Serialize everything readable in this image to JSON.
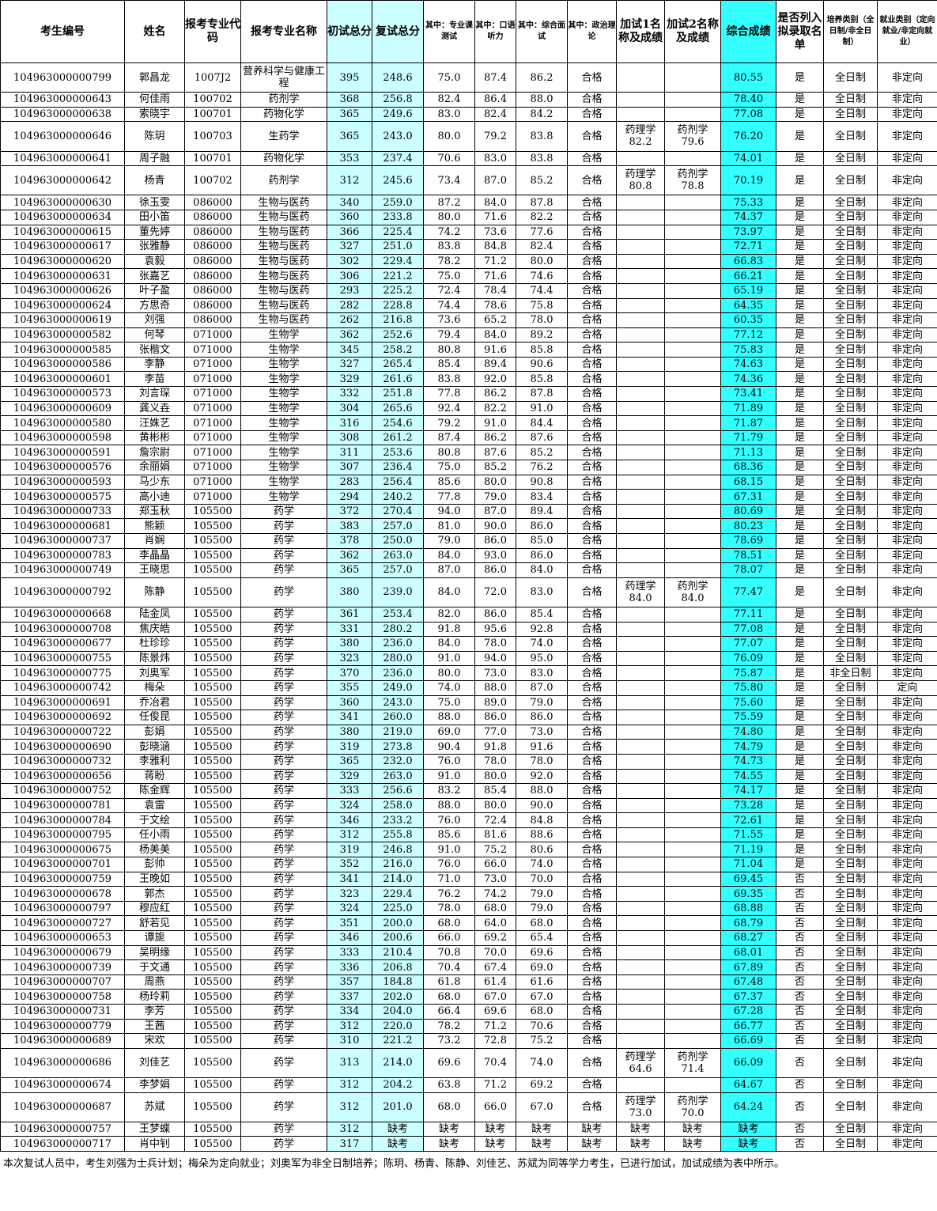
{
  "table": {
    "columns": [
      "考生编号",
      "姓名",
      "报考专业代码",
      "报考专业名称",
      "初试总分",
      "复试总分",
      "其中：专业课测试",
      "其中：口语听力",
      "其中：综合面试",
      "其中：政治理论",
      "加试1名称及成绩",
      "加试2名称及成绩",
      "综合成绩",
      "是否列入拟录取名单",
      "培养类别（全日制/非全日制）",
      "就业类别（定向就业/非定向就业）"
    ],
    "rows": [
      [
        "104963000000799",
        "郭昌龙",
        "1007J2",
        "营养科学与健康工程",
        "395",
        "248.6",
        "75.0",
        "87.4",
        "86.2",
        "合格",
        null,
        null,
        "80.55",
        "是",
        "全日制",
        "非定向"
      ],
      [
        "104963000000643",
        "何佳雨",
        "100702",
        "药剂学",
        "368",
        "256.8",
        "82.4",
        "86.4",
        "88.0",
        "合格",
        null,
        null,
        "78.40",
        "是",
        "全日制",
        "非定向"
      ],
      [
        "104963000000638",
        "索晓宇",
        "100701",
        "药物化学",
        "365",
        "249.6",
        "83.0",
        "82.4",
        "84.2",
        "合格",
        null,
        null,
        "77.08",
        "是",
        "全日制",
        "非定向"
      ],
      [
        "104963000000646",
        "陈玥",
        "100703",
        "生药学",
        "365",
        "243.0",
        "80.0",
        "79.2",
        "83.8",
        "合格",
        "药理学\n82.2",
        "药剂学\n79.6",
        "76.20",
        "是",
        "全日制",
        "非定向"
      ],
      [
        "104963000000641",
        "周子融",
        "100701",
        "药物化学",
        "353",
        "237.4",
        "70.6",
        "83.0",
        "83.8",
        "合格",
        null,
        null,
        "74.01",
        "是",
        "全日制",
        "非定向"
      ],
      [
        "104963000000642",
        "杨青",
        "100702",
        "药剂学",
        "312",
        "245.6",
        "73.4",
        "87.0",
        "85.2",
        "合格",
        "药理学\n80.8",
        "药剂学\n78.8",
        "70.19",
        "是",
        "全日制",
        "非定向"
      ],
      [
        "104963000000630",
        "徐玉雯",
        "086000",
        "生物与医药",
        "340",
        "259.0",
        "87.2",
        "84.0",
        "87.8",
        "合格",
        null,
        null,
        "75.33",
        "是",
        "全日制",
        "非定向"
      ],
      [
        "104963000000634",
        "田小笛",
        "086000",
        "生物与医药",
        "360",
        "233.8",
        "80.0",
        "71.6",
        "82.2",
        "合格",
        null,
        null,
        "74.37",
        "是",
        "全日制",
        "非定向"
      ],
      [
        "104963000000615",
        "董先婷",
        "086000",
        "生物与医药",
        "366",
        "225.4",
        "74.2",
        "73.6",
        "77.6",
        "合格",
        null,
        null,
        "73.97",
        "是",
        "全日制",
        "非定向"
      ],
      [
        "104963000000617",
        "张雅静",
        "086000",
        "生物与医药",
        "327",
        "251.0",
        "83.8",
        "84.8",
        "82.4",
        "合格",
        null,
        null,
        "72.71",
        "是",
        "全日制",
        "非定向"
      ],
      [
        "104963000000620",
        "袁毅",
        "086000",
        "生物与医药",
        "302",
        "229.4",
        "78.2",
        "71.2",
        "80.0",
        "合格",
        null,
        null,
        "66.83",
        "是",
        "全日制",
        "非定向"
      ],
      [
        "104963000000631",
        "张嘉艺",
        "086000",
        "生物与医药",
        "306",
        "221.2",
        "75.0",
        "71.6",
        "74.6",
        "合格",
        null,
        null,
        "66.21",
        "是",
        "全日制",
        "非定向"
      ],
      [
        "104963000000626",
        "叶子盈",
        "086000",
        "生物与医药",
        "293",
        "225.2",
        "72.4",
        "78.4",
        "74.4",
        "合格",
        null,
        null,
        "65.19",
        "是",
        "全日制",
        "非定向"
      ],
      [
        "104963000000624",
        "方思奇",
        "086000",
        "生物与医药",
        "282",
        "228.8",
        "74.4",
        "78.6",
        "75.8",
        "合格",
        null,
        null,
        "64.35",
        "是",
        "全日制",
        "非定向"
      ],
      [
        "104963000000619",
        "刘强",
        "086000",
        "生物与医药",
        "262",
        "216.8",
        "73.6",
        "65.2",
        "78.0",
        "合格",
        null,
        null,
        "60.35",
        "是",
        "全日制",
        "非定向"
      ],
      [
        "104963000000582",
        "何琴",
        "071000",
        "生物学",
        "362",
        "252.6",
        "79.4",
        "84.0",
        "89.2",
        "合格",
        null,
        null,
        "77.12",
        "是",
        "全日制",
        "非定向"
      ],
      [
        "104963000000585",
        "张楷文",
        "071000",
        "生物学",
        "345",
        "258.2",
        "80.8",
        "91.6",
        "85.8",
        "合格",
        null,
        null,
        "75.83",
        "是",
        "全日制",
        "非定向"
      ],
      [
        "104963000000586",
        "李静",
        "071000",
        "生物学",
        "327",
        "265.4",
        "85.4",
        "89.4",
        "90.6",
        "合格",
        null,
        null,
        "74.63",
        "是",
        "全日制",
        "非定向"
      ],
      [
        "104963000000601",
        "李苗",
        "071000",
        "生物学",
        "329",
        "261.6",
        "83.8",
        "92.0",
        "85.8",
        "合格",
        null,
        null,
        "74.36",
        "是",
        "全日制",
        "非定向"
      ],
      [
        "104963000000573",
        "刘言琛",
        "071000",
        "生物学",
        "332",
        "251.8",
        "77.8",
        "86.2",
        "87.8",
        "合格",
        null,
        null,
        "73.41",
        "是",
        "全日制",
        "非定向"
      ],
      [
        "104963000000609",
        "龚义垚",
        "071000",
        "生物学",
        "304",
        "265.6",
        "92.4",
        "82.2",
        "91.0",
        "合格",
        null,
        null,
        "71.89",
        "是",
        "全日制",
        "非定向"
      ],
      [
        "104963000000580",
        "汪姝艺",
        "071000",
        "生物学",
        "316",
        "254.6",
        "79.2",
        "91.0",
        "84.4",
        "合格",
        null,
        null,
        "71.87",
        "是",
        "全日制",
        "非定向"
      ],
      [
        "104963000000598",
        "黄彬彬",
        "071000",
        "生物学",
        "308",
        "261.2",
        "87.4",
        "86.2",
        "87.6",
        "合格",
        null,
        null,
        "71.79",
        "是",
        "全日制",
        "非定向"
      ],
      [
        "104963000000591",
        "詹宗尉",
        "071000",
        "生物学",
        "311",
        "253.6",
        "80.8",
        "87.6",
        "85.2",
        "合格",
        null,
        null,
        "71.13",
        "是",
        "全日制",
        "非定向"
      ],
      [
        "104963000000576",
        "余丽娟",
        "071000",
        "生物学",
        "307",
        "236.4",
        "75.0",
        "85.2",
        "76.2",
        "合格",
        null,
        null,
        "68.36",
        "是",
        "全日制",
        "非定向"
      ],
      [
        "104963000000593",
        "马少东",
        "071000",
        "生物学",
        "283",
        "256.4",
        "85.6",
        "80.0",
        "90.8",
        "合格",
        null,
        null,
        "68.15",
        "是",
        "全日制",
        "非定向"
      ],
      [
        "104963000000575",
        "高小迪",
        "071000",
        "生物学",
        "294",
        "240.2",
        "77.8",
        "79.0",
        "83.4",
        "合格",
        null,
        null,
        "67.31",
        "是",
        "全日制",
        "非定向"
      ],
      [
        "104963000000733",
        "郑玉秋",
        "105500",
        "药学",
        "372",
        "270.4",
        "94.0",
        "87.0",
        "89.4",
        "合格",
        null,
        null,
        "80.69",
        "是",
        "全日制",
        "非定向"
      ],
      [
        "104963000000681",
        "熊颖",
        "105500",
        "药学",
        "383",
        "257.0",
        "81.0",
        "90.0",
        "86.0",
        "合格",
        null,
        null,
        "80.23",
        "是",
        "全日制",
        "非定向"
      ],
      [
        "104963000000737",
        "肖娴",
        "105500",
        "药学",
        "378",
        "250.0",
        "79.0",
        "86.0",
        "85.0",
        "合格",
        null,
        null,
        "78.69",
        "是",
        "全日制",
        "非定向"
      ],
      [
        "104963000000783",
        "李晶晶",
        "105500",
        "药学",
        "362",
        "263.0",
        "84.0",
        "93.0",
        "86.0",
        "合格",
        null,
        null,
        "78.51",
        "是",
        "全日制",
        "非定向"
      ],
      [
        "104963000000749",
        "王晓思",
        "105500",
        "药学",
        "365",
        "257.0",
        "87.0",
        "86.0",
        "84.0",
        "合格",
        null,
        null,
        "78.07",
        "是",
        "全日制",
        "非定向"
      ],
      [
        "104963000000792",
        "陈静",
        "105500",
        "药学",
        "380",
        "239.0",
        "84.0",
        "72.0",
        "83.0",
        "合格",
        "药理学\n84.0",
        "药剂学\n84.0",
        "77.47",
        "是",
        "全日制",
        "非定向"
      ],
      [
        "104963000000668",
        "陆金凤",
        "105500",
        "药学",
        "361",
        "253.4",
        "82.0",
        "86.0",
        "85.4",
        "合格",
        null,
        null,
        "77.11",
        "是",
        "全日制",
        "非定向"
      ],
      [
        "104963000000708",
        "焦庆皓",
        "105500",
        "药学",
        "331",
        "280.2",
        "91.8",
        "95.6",
        "92.8",
        "合格",
        null,
        null,
        "77.08",
        "是",
        "全日制",
        "非定向"
      ],
      [
        "104963000000677",
        "杜珍珍",
        "105500",
        "药学",
        "380",
        "236.0",
        "84.0",
        "78.0",
        "74.0",
        "合格",
        null,
        null,
        "77.07",
        "是",
        "全日制",
        "非定向"
      ],
      [
        "104963000000755",
        "陈景炜",
        "105500",
        "药学",
        "323",
        "280.0",
        "91.0",
        "94.0",
        "95.0",
        "合格",
        null,
        null,
        "76.09",
        "是",
        "全日制",
        "非定向"
      ],
      [
        "104963000000775",
        "刘奥军",
        "105500",
        "药学",
        "370",
        "236.0",
        "80.0",
        "73.0",
        "83.0",
        "合格",
        null,
        null,
        "75.87",
        "是",
        "非全日制",
        "非定向"
      ],
      [
        "104963000000742",
        "梅朵",
        "105500",
        "药学",
        "355",
        "249.0",
        "74.0",
        "88.0",
        "87.0",
        "合格",
        null,
        null,
        "75.80",
        "是",
        "全日制",
        "定向"
      ],
      [
        "104963000000691",
        "乔冶君",
        "105500",
        "药学",
        "360",
        "243.0",
        "75.0",
        "89.0",
        "79.0",
        "合格",
        null,
        null,
        "75.60",
        "是",
        "全日制",
        "非定向"
      ],
      [
        "104963000000692",
        "任俊昆",
        "105500",
        "药学",
        "341",
        "260.0",
        "88.0",
        "86.0",
        "86.0",
        "合格",
        null,
        null,
        "75.59",
        "是",
        "全日制",
        "非定向"
      ],
      [
        "104963000000722",
        "彭娟",
        "105500",
        "药学",
        "380",
        "219.0",
        "69.0",
        "77.0",
        "73.0",
        "合格",
        null,
        null,
        "74.80",
        "是",
        "全日制",
        "非定向"
      ],
      [
        "104963000000690",
        "彭晓涵",
        "105500",
        "药学",
        "319",
        "273.8",
        "90.4",
        "91.8",
        "91.6",
        "合格",
        null,
        null,
        "74.79",
        "是",
        "全日制",
        "非定向"
      ],
      [
        "104963000000732",
        "李雅利",
        "105500",
        "药学",
        "365",
        "232.0",
        "76.0",
        "78.0",
        "78.0",
        "合格",
        null,
        null,
        "74.73",
        "是",
        "全日制",
        "非定向"
      ],
      [
        "104963000000656",
        "蒋盼",
        "105500",
        "药学",
        "329",
        "263.0",
        "91.0",
        "80.0",
        "92.0",
        "合格",
        null,
        null,
        "74.55",
        "是",
        "全日制",
        "非定向"
      ],
      [
        "104963000000752",
        "陈金辉",
        "105500",
        "药学",
        "333",
        "256.6",
        "83.2",
        "85.4",
        "88.0",
        "合格",
        null,
        null,
        "74.17",
        "是",
        "全日制",
        "非定向"
      ],
      [
        "104963000000781",
        "袁雷",
        "105500",
        "药学",
        "324",
        "258.0",
        "88.0",
        "80.0",
        "90.0",
        "合格",
        null,
        null,
        "73.28",
        "是",
        "全日制",
        "非定向"
      ],
      [
        "104963000000784",
        "于文绘",
        "105500",
        "药学",
        "346",
        "233.2",
        "76.0",
        "72.4",
        "84.8",
        "合格",
        null,
        null,
        "72.61",
        "是",
        "全日制",
        "非定向"
      ],
      [
        "104963000000795",
        "任小雨",
        "105500",
        "药学",
        "312",
        "255.8",
        "85.6",
        "81.6",
        "88.6",
        "合格",
        null,
        null,
        "71.55",
        "是",
        "全日制",
        "非定向"
      ],
      [
        "104963000000675",
        "杨美美",
        "105500",
        "药学",
        "319",
        "246.8",
        "91.0",
        "75.2",
        "80.6",
        "合格",
        null,
        null,
        "71.19",
        "是",
        "全日制",
        "非定向"
      ],
      [
        "104963000000701",
        "彭帅",
        "105500",
        "药学",
        "352",
        "216.0",
        "76.0",
        "66.0",
        "74.0",
        "合格",
        null,
        null,
        "71.04",
        "是",
        "全日制",
        "非定向"
      ],
      [
        "104963000000759",
        "王晚如",
        "105500",
        "药学",
        "341",
        "214.0",
        "71.0",
        "73.0",
        "70.0",
        "合格",
        null,
        null,
        "69.45",
        "否",
        "全日制",
        "非定向"
      ],
      [
        "104963000000678",
        "郭杰",
        "105500",
        "药学",
        "323",
        "229.4",
        "76.2",
        "74.2",
        "79.0",
        "合格",
        null,
        null,
        "69.35",
        "否",
        "全日制",
        "非定向"
      ],
      [
        "104963000000797",
        "穆应红",
        "105500",
        "药学",
        "324",
        "225.0",
        "78.0",
        "68.0",
        "79.0",
        "合格",
        null,
        null,
        "68.88",
        "否",
        "全日制",
        "非定向"
      ],
      [
        "104963000000727",
        "舒若见",
        "105500",
        "药学",
        "351",
        "200.0",
        "68.0",
        "64.0",
        "68.0",
        "合格",
        null,
        null,
        "68.79",
        "否",
        "全日制",
        "非定向"
      ],
      [
        "104963000000653",
        "谭旎",
        "105500",
        "药学",
        "346",
        "200.6",
        "66.0",
        "69.2",
        "65.4",
        "合格",
        null,
        null,
        "68.27",
        "否",
        "全日制",
        "非定向"
      ],
      [
        "104963000000679",
        "吴明缘",
        "105500",
        "药学",
        "333",
        "210.4",
        "70.8",
        "70.0",
        "69.6",
        "合格",
        null,
        null,
        "68.01",
        "否",
        "全日制",
        "非定向"
      ],
      [
        "104963000000739",
        "于文通",
        "105500",
        "药学",
        "336",
        "206.8",
        "70.4",
        "67.4",
        "69.0",
        "合格",
        null,
        null,
        "67.89",
        "否",
        "全日制",
        "非定向"
      ],
      [
        "104963000000707",
        "周燕",
        "105500",
        "药学",
        "357",
        "184.8",
        "61.8",
        "61.4",
        "61.6",
        "合格",
        null,
        null,
        "67.48",
        "否",
        "全日制",
        "非定向"
      ],
      [
        "104963000000758",
        "杨玲莉",
        "105500",
        "药学",
        "337",
        "202.0",
        "68.0",
        "67.0",
        "67.0",
        "合格",
        null,
        null,
        "67.37",
        "否",
        "全日制",
        "非定向"
      ],
      [
        "104963000000731",
        "李芳",
        "105500",
        "药学",
        "334",
        "204.0",
        "66.4",
        "69.6",
        "68.0",
        "合格",
        null,
        null,
        "67.28",
        "否",
        "全日制",
        "非定向"
      ],
      [
        "104963000000779",
        "王茜",
        "105500",
        "药学",
        "312",
        "220.0",
        "78.2",
        "71.2",
        "70.6",
        "合格",
        null,
        null,
        "66.77",
        "否",
        "全日制",
        "非定向"
      ],
      [
        "104963000000689",
        "宋欢",
        "105500",
        "药学",
        "310",
        "221.2",
        "73.2",
        "72.8",
        "75.2",
        "合格",
        null,
        null,
        "66.69",
        "否",
        "全日制",
        "非定向"
      ],
      [
        "104963000000686",
        "刘佳艺",
        "105500",
        "药学",
        "313",
        "214.0",
        "69.6",
        "70.4",
        "74.0",
        "合格",
        "药理学\n64.6",
        "药剂学\n71.4",
        "66.09",
        "否",
        "全日制",
        "非定向"
      ],
      [
        "104963000000674",
        "李梦娟",
        "105500",
        "药学",
        "312",
        "204.2",
        "63.8",
        "71.2",
        "69.2",
        "合格",
        null,
        null,
        "64.67",
        "否",
        "全日制",
        "非定向"
      ],
      [
        "104963000000687",
        "苏斌",
        "105500",
        "药学",
        "312",
        "201.0",
        "68.0",
        "66.0",
        "67.0",
        "合格",
        "药理学\n73.0",
        "药剂学\n70.0",
        "64.24",
        "否",
        "全日制",
        "非定向"
      ],
      [
        "104963000000757",
        "王梦蝶",
        "105500",
        "药学",
        "312",
        "缺考",
        "缺考",
        "缺考",
        "缺考",
        "缺考",
        "缺考",
        "缺考",
        "缺考",
        "否",
        "全日制",
        "非定向"
      ],
      [
        "104963000000717",
        "肖中钊",
        "105500",
        "药学",
        "317",
        "缺考",
        "缺考",
        "缺考",
        "缺考",
        "缺考",
        "缺考",
        "缺考",
        "缺考",
        "否",
        "全日制",
        "非定向"
      ]
    ]
  },
  "note": "本次复试人员中，考生刘强为士兵计划；梅朵为定向就业；刘奥军为非全日制培养；陈玥、杨青、陈静、刘佳艺、苏斌为同等学力考生，已进行加试，加试成绩为表中所示。"
}
